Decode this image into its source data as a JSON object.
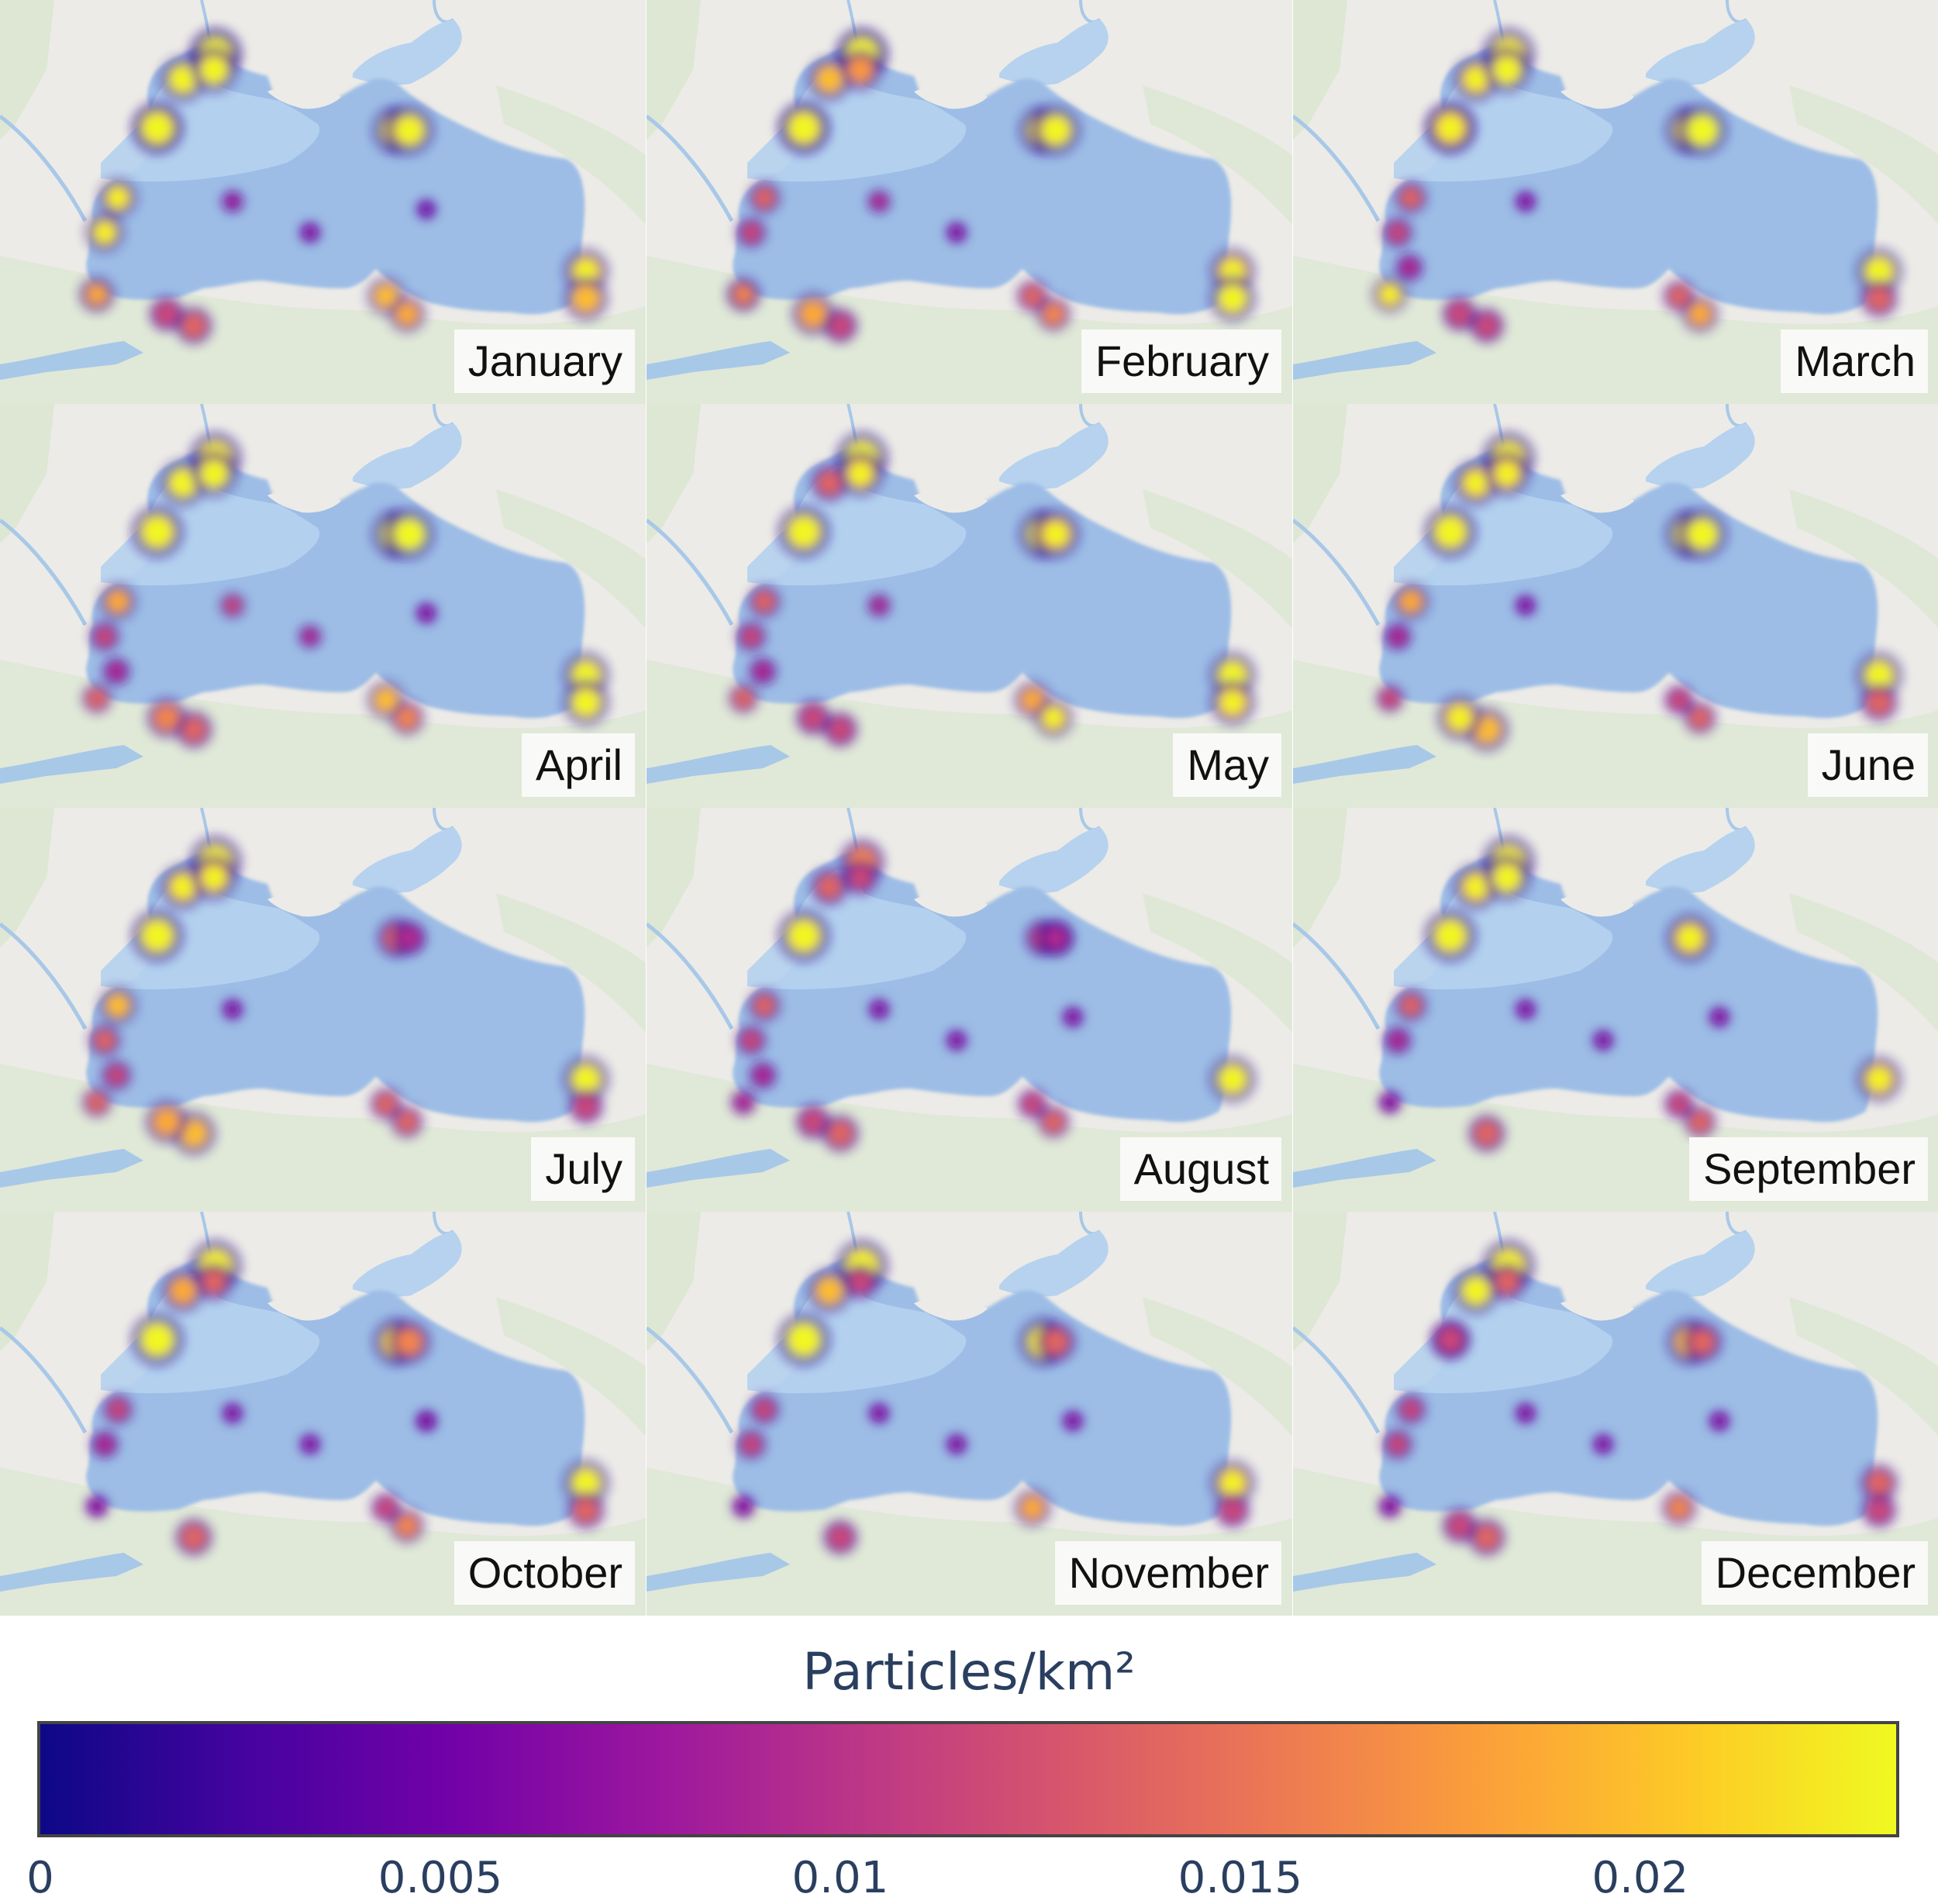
{
  "panels": [
    {
      "month": "January",
      "hotspots": [
        [
          0.95,
          0.97
        ],
        [
          0.94,
          0.95
        ],
        [
          0.85,
          0.95
        ],
        [
          0.95,
          0.95
        ],
        [
          0.9,
          0.9
        ],
        [
          0.35,
          0.3,
          0.25
        ],
        [
          0.9,
          0.85
        ],
        [
          0.85,
          0.8
        ],
        [
          0.6,
          0.5
        ],
        [
          0.85,
          0.8
        ]
      ]
    },
    {
      "month": "February",
      "hotspots": [
        [
          0.95,
          0.97
        ],
        [
          0.85,
          0.75
        ],
        [
          0.95,
          0.95
        ],
        [
          0.95,
          0.95
        ],
        [
          0.6,
          0.5
        ],
        [
          0.4,
          0.3
        ],
        [
          0.9,
          0.95
        ],
        [
          0.6,
          0.7
        ],
        [
          0.5,
          0.8
        ],
        [
          0.8,
          0.7
        ]
      ]
    },
    {
      "month": "March",
      "hotspots": [
        [
          0.95
        ],
        [
          0.9,
          0.95
        ],
        [
          0.95,
          0.9
        ],
        [
          0.95,
          0.98
        ],
        [
          0.6,
          0.5,
          0.4
        ],
        [
          0.3
        ],
        [
          0.95,
          0.6
        ],
        [
          0.6,
          0.8
        ],
        [
          0.5,
          0.5
        ],
        [
          0.9
        ]
      ]
    },
    {
      "month": "April",
      "hotspots": [
        [
          0.95
        ],
        [
          0.95,
          0.95
        ],
        [
          0.95
        ],
        [
          0.98,
          0.98
        ],
        [
          0.8,
          0.5,
          0.4
        ],
        [
          0.5,
          0.4,
          0.3
        ],
        [
          0.95,
          0.95
        ],
        [
          0.85,
          0.7
        ],
        [
          0.6,
          0.7
        ],
        [
          0.6
        ]
      ]
    },
    {
      "month": "May",
      "hotspots": [
        [
          0.97
        ],
        [
          0.6,
          0.9
        ],
        [
          0.95
        ],
        [
          0.97,
          0.9
        ],
        [
          0.6,
          0.5,
          0.4
        ],
        [
          0.4
        ],
        [
          0.95,
          0.9
        ],
        [
          0.8,
          0.9
        ],
        [
          0.5,
          0.5
        ],
        [
          0.6
        ]
      ]
    },
    {
      "month": "June",
      "hotspots": [
        [
          0.95
        ],
        [
          0.9,
          0.9
        ],
        [
          0.95
        ],
        [
          0.97,
          0.97
        ],
        [
          0.8,
          0.4
        ],
        [
          0.3
        ],
        [
          0.95,
          0.6
        ],
        [
          0.5,
          0.6
        ],
        [
          0.85,
          0.9
        ],
        [
          0.5
        ]
      ]
    },
    {
      "month": "July",
      "hotspots": [
        [
          0.95
        ],
        [
          0.9,
          0.9
        ],
        [
          0.95
        ],
        [
          0.6,
          0.4
        ],
        [
          0.85,
          0.6,
          0.5
        ],
        [
          0.3
        ],
        [
          0.95,
          0.5
        ],
        [
          0.6,
          0.6
        ],
        [
          0.85,
          0.8
        ],
        [
          0.6
        ]
      ]
    },
    {
      "month": "August",
      "hotspots": [
        [
          0.7
        ],
        [
          0.6,
          0.5
        ],
        [
          0.95
        ],
        [
          0.5,
          0.5,
          0.4
        ],
        [
          0.6,
          0.5,
          0.4
        ],
        [
          0.3,
          0.3,
          0.3
        ],
        [
          0.95
        ],
        [
          0.5,
          0.6
        ],
        [
          0.6,
          0.5
        ],
        [
          0.4
        ]
      ]
    },
    {
      "month": "September",
      "hotspots": [
        [
          0.95
        ],
        [
          0.9,
          0.95
        ],
        [
          0.95
        ],
        [
          0.9
        ],
        [
          0.6,
          0.4
        ],
        [
          0.3,
          0.3,
          0.3
        ],
        [
          0.9
        ],
        [
          0.5,
          0.6
        ],
        [
          0.6
        ],
        [
          0.3
        ]
      ]
    },
    {
      "month": "October",
      "hotspots": [
        [
          0.95
        ],
        [
          0.8,
          0.6
        ],
        [
          0.97
        ],
        [
          0.9,
          0.7
        ],
        [
          0.5,
          0.4
        ],
        [
          0.3,
          0.3,
          0.3,
          0.3
        ],
        [
          0.95,
          0.6
        ],
        [
          0.5,
          0.7
        ],
        [
          0.6
        ],
        [
          0.3
        ]
      ]
    },
    {
      "month": "November",
      "hotspots": [
        [
          0.95
        ],
        [
          0.85,
          0.5
        ],
        [
          0.97
        ],
        [
          0.95,
          0.6
        ],
        [
          0.5,
          0.5
        ],
        [
          0.3,
          0.3,
          0.3
        ],
        [
          0.9,
          0.5
        ],
        [
          0.8
        ],
        [
          0.5
        ],
        [
          0.3
        ]
      ]
    },
    {
      "month": "December",
      "hotspots": [
        [
          0.95
        ],
        [
          0.95,
          0.6
        ],
        [
          0.5,
          0.5,
          0.5
        ],
        [
          0.85,
          0.6
        ],
        [
          0.5,
          0.5
        ],
        [
          0.3,
          0.3,
          0.3
        ],
        [
          0.6,
          0.5
        ],
        [
          0.7
        ],
        [
          0.6,
          0.5
        ],
        [
          0.3
        ]
      ]
    }
  ],
  "legend": {
    "title": "Particles/km²",
    "range": [
      0,
      0.0232
    ],
    "ticks": [
      {
        "value": 0,
        "label": "0"
      },
      {
        "value": 0.005,
        "label": "0.005"
      },
      {
        "value": 0.01,
        "label": "0.01"
      },
      {
        "value": 0.015,
        "label": "0.015"
      },
      {
        "value": 0.02,
        "label": "0.02"
      }
    ],
    "colorscale": "plasma",
    "colors": [
      "#0d0887",
      "#46039f",
      "#7201a8",
      "#9c179e",
      "#bd3786",
      "#d8576b",
      "#ed7953",
      "#fb9f3a",
      "#fdca26",
      "#f0f921"
    ]
  },
  "map_colors": {
    "land": "#ecebe7",
    "vegetation": "#dde7d3",
    "deep_sea": "#9dbde6",
    "shelf_sea": "#b6d2ee",
    "river": "#a8c8e8"
  }
}
